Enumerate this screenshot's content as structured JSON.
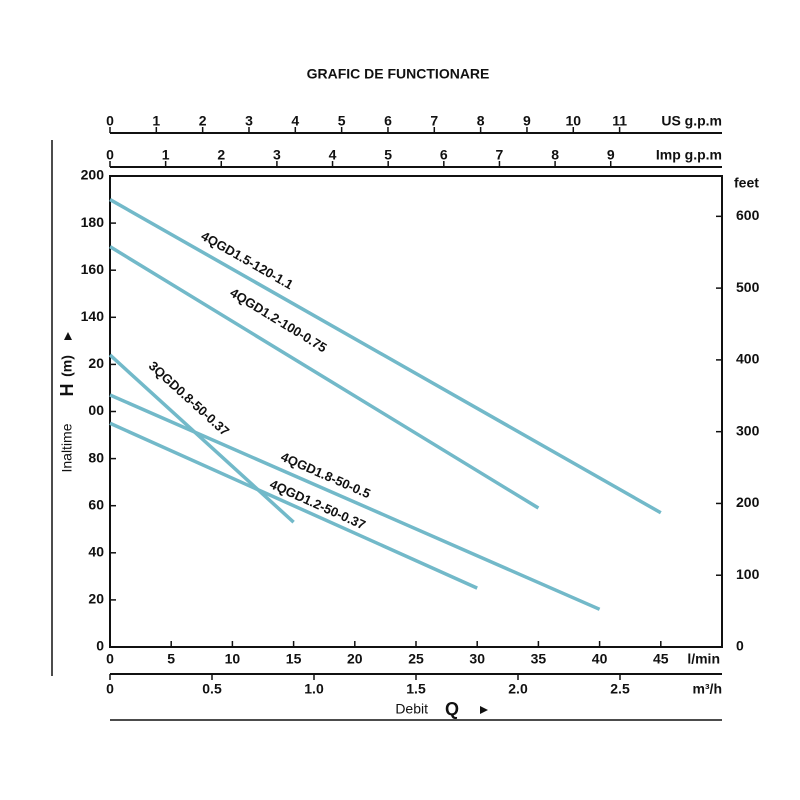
{
  "chart_data": {
    "type": "line",
    "title": "GRAFIC DE FUNCTIONARE",
    "xlabel": "Debit",
    "xlabel_symbol": "Q",
    "ylabel": "Inaltime",
    "ylabel_symbol": "H",
    "ylabel_unit": "(m)",
    "x_unit": "l/min",
    "xlim": [
      0,
      50
    ],
    "xticks": [
      0,
      5,
      10,
      15,
      20,
      25,
      30,
      35,
      40,
      45
    ],
    "ylim": [
      0,
      200
    ],
    "yticks": [
      0,
      20,
      40,
      60,
      80,
      {
        "value": 100,
        "label": "00"
      },
      {
        "value": 120,
        "label": "20"
      },
      140,
      160,
      180,
      200
    ],
    "y2_unit": "feet",
    "y2lim": [
      0,
      656.2
    ],
    "y2ticks": [
      0,
      100,
      200,
      300,
      400,
      500,
      600
    ],
    "extra_x_axes": [
      {
        "unit": "US g.p.m",
        "lim": [
          0,
          13.21
        ],
        "ticks": [
          0,
          1,
          2,
          3,
          4,
          5,
          6,
          7,
          8,
          9,
          10,
          11
        ]
      },
      {
        "unit": "Imp g.p.m",
        "lim": [
          0,
          11.0
        ],
        "ticks": [
          0,
          1,
          2,
          3,
          4,
          5,
          6,
          7,
          8,
          9
        ]
      },
      {
        "unit": "m³/h",
        "lim": [
          0,
          3.0
        ],
        "ticks": [
          0,
          0.5,
          {
            "value": 1,
            "label": "1.0"
          },
          1.5,
          {
            "value": 2,
            "label": "2.0"
          },
          2.5
        ]
      }
    ],
    "series": [
      {
        "name": "4QGD1.5-120-1.1",
        "color": "#72b9c9",
        "x": [
          0,
          45
        ],
        "values": [
          190,
          57
        ]
      },
      {
        "name": "4QGD1.2-100-0.75",
        "color": "#72b9c9",
        "x": [
          0,
          35
        ],
        "values": [
          170,
          59
        ]
      },
      {
        "name": "3QGD0.8-50-0.37",
        "color": "#72b9c9",
        "x": [
          0,
          15
        ],
        "values": [
          124,
          53
        ]
      },
      {
        "name": "4QGD1.8-50-0.5",
        "color": "#72b9c9",
        "x": [
          0,
          40
        ],
        "values": [
          107,
          16
        ]
      },
      {
        "name": "4QGD1.2-50-0.37",
        "color": "#72b9c9",
        "x": [
          0,
          30
        ],
        "values": [
          95,
          25
        ]
      }
    ]
  }
}
